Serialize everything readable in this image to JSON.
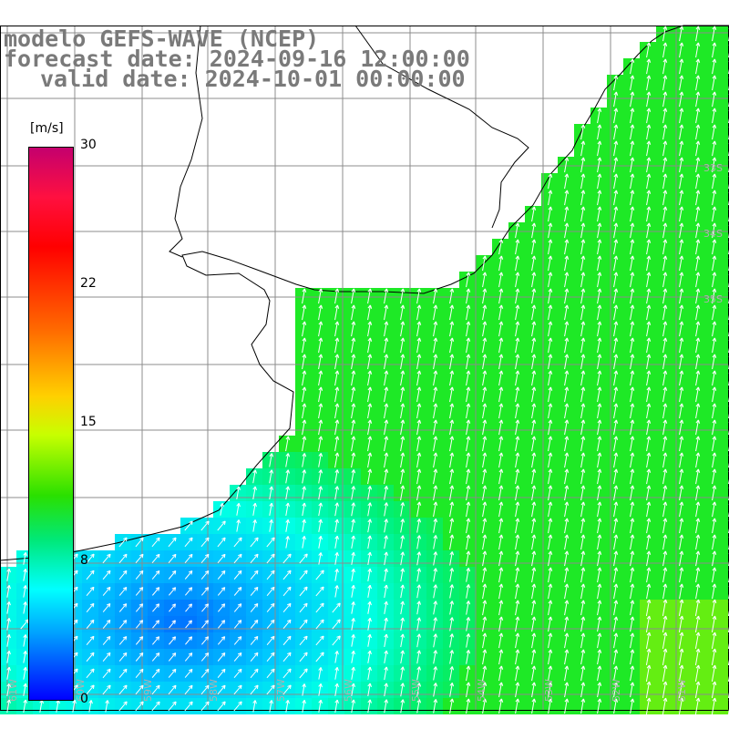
{
  "header": {
    "model": "modelo GEFS-WAVE (NCEP)",
    "forecast": "forecast date: 2024-09-16 12:00:00",
    "valid": "valid date: 2024-10-01 00:00:00"
  },
  "colorbar": {
    "unit": "[m/s]",
    "ticks": [
      "30",
      "22",
      "15",
      "8",
      "0"
    ],
    "range": [
      0,
      30
    ],
    "colors": [
      "#0000ff",
      "#00a0ff",
      "#00ffff",
      "#00e878",
      "#2ae000",
      "#c8ff00",
      "#ffd000",
      "#ff6a00",
      "#ff0000",
      "#ff1040",
      "#c4006e"
    ]
  },
  "map": {
    "field": "wind speed",
    "arrow_color": "#ffffff",
    "coastline_color": "#000000",
    "grid_color": "#8c8c8c",
    "land_color": "#ffffff",
    "lon_labels": [
      "61W",
      "60W",
      "59W",
      "58W",
      "57W",
      "56W",
      "55W",
      "54W",
      "53W",
      "52W",
      "51W"
    ],
    "lat_labels": [
      "33S",
      "34S",
      "35S"
    ]
  }
}
